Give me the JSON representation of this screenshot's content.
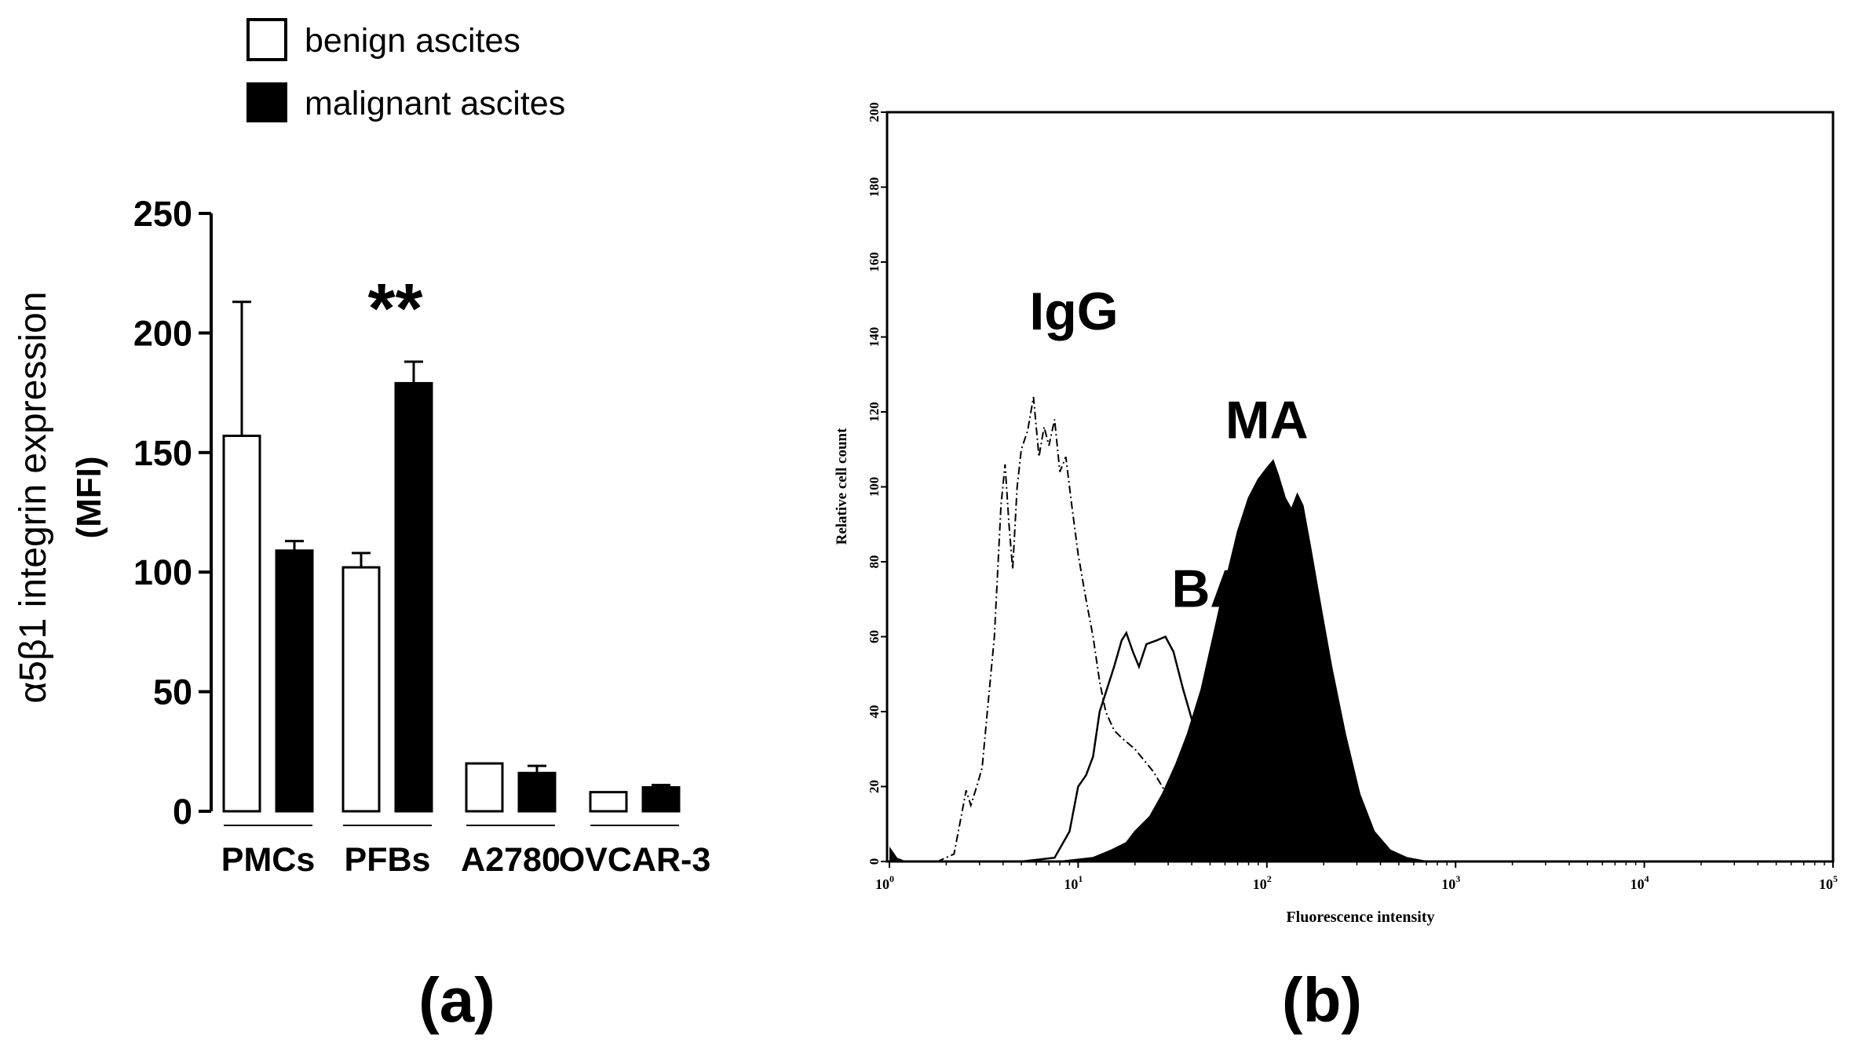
{
  "chart_data": [
    {
      "type": "bar",
      "panel_label": "(a)",
      "ylabel": "α5β1 integrin expression",
      "ylabel_unit": "(MFI)",
      "ylim": [
        0,
        250
      ],
      "yticks": [
        0,
        50,
        100,
        150,
        200,
        250
      ],
      "categories": [
        "PMCs",
        "PFBs",
        "A2780",
        "OVCAR-3"
      ],
      "series": [
        {
          "name": "benign ascites",
          "fill": "#ffffff",
          "values": [
            157,
            102,
            20,
            8
          ],
          "errors": [
            56,
            6,
            0,
            0
          ]
        },
        {
          "name": "malignant ascites",
          "fill": "#000000",
          "values": [
            109,
            179,
            16,
            10
          ],
          "errors": [
            4,
            9,
            3,
            1
          ]
        }
      ],
      "annotations": [
        {
          "text": "**",
          "category": "PFBs"
        }
      ],
      "legend_position": "top"
    },
    {
      "type": "area",
      "subtype": "flow cytometry histogram",
      "panel_label": "(b)",
      "xlabel": "Fluorescence intensity",
      "ylabel": "Relative cell count",
      "x_scale": "log",
      "xlim": [
        1,
        100000
      ],
      "ylim": [
        0,
        200
      ],
      "yticks": [
        0,
        20,
        40,
        60,
        80,
        100,
        120,
        140,
        160,
        180,
        200
      ],
      "xticks": [
        {
          "value": 1,
          "base": "10",
          "exp": "0"
        },
        {
          "value": 10,
          "base": "10",
          "exp": "1"
        },
        {
          "value": 100,
          "base": "10",
          "exp": "2"
        },
        {
          "value": 1000,
          "base": "10",
          "exp": "3"
        },
        {
          "value": 10000,
          "base": "10",
          "exp": "4"
        },
        {
          "value": 100000,
          "base": "10",
          "exp": "5"
        }
      ],
      "series": [
        {
          "name": "IgG",
          "style": "dash-dot",
          "label_at": [
            9.5,
            142
          ],
          "points": [
            [
              1,
              0
            ],
            [
              1.3,
              0
            ],
            [
              1.8,
              0
            ],
            [
              2.2,
              2
            ],
            [
              2.4,
              12
            ],
            [
              2.55,
              19
            ],
            [
              2.7,
              15
            ],
            [
              2.9,
              20
            ],
            [
              3.1,
              25
            ],
            [
              3.3,
              40
            ],
            [
              3.6,
              60
            ],
            [
              3.9,
              95
            ],
            [
              4.1,
              106
            ],
            [
              4.3,
              90
            ],
            [
              4.5,
              78
            ],
            [
              4.75,
              100
            ],
            [
              5.0,
              110
            ],
            [
              5.4,
              115
            ],
            [
              5.8,
              124
            ],
            [
              6.2,
              108
            ],
            [
              6.6,
              116
            ],
            [
              7.0,
              111
            ],
            [
              7.5,
              118
            ],
            [
              8.0,
              104
            ],
            [
              8.6,
              108
            ],
            [
              9.2,
              96
            ],
            [
              10,
              82
            ],
            [
              11,
              70
            ],
            [
              12,
              60
            ],
            [
              13,
              48
            ],
            [
              14,
              40
            ],
            [
              15.5,
              35
            ],
            [
              17,
              33
            ],
            [
              20,
              30
            ],
            [
              25,
              24
            ],
            [
              32,
              15
            ],
            [
              42,
              10
            ],
            [
              55,
              5
            ],
            [
              75,
              2
            ],
            [
              100,
              1
            ],
            [
              140,
              0
            ],
            [
              200,
              0
            ]
          ]
        },
        {
          "name": "BA",
          "style": "solid",
          "label_at": [
            50,
            68
          ],
          "points": [
            [
              1,
              0
            ],
            [
              5,
              0
            ],
            [
              7.5,
              1
            ],
            [
              9,
              8
            ],
            [
              10,
              20
            ],
            [
              11,
              23
            ],
            [
              12,
              28
            ],
            [
              13,
              40
            ],
            [
              14,
              45
            ],
            [
              15.5,
              52
            ],
            [
              17,
              59
            ],
            [
              18,
              61
            ],
            [
              19.5,
              56
            ],
            [
              21,
              52
            ],
            [
              23,
              58
            ],
            [
              26,
              59
            ],
            [
              29,
              60
            ],
            [
              32,
              56
            ],
            [
              36,
              46
            ],
            [
              40,
              38
            ],
            [
              48,
              30
            ],
            [
              60,
              20
            ],
            [
              80,
              10
            ],
            [
              110,
              4
            ],
            [
              160,
              1
            ],
            [
              250,
              0
            ],
            [
              400,
              0
            ]
          ]
        },
        {
          "name": "MA",
          "style": "filled",
          "label_at": [
            100,
            113
          ],
          "points": [
            [
              1,
              0
            ],
            [
              8,
              0
            ],
            [
              12,
              1
            ],
            [
              15,
              3
            ],
            [
              18,
              5
            ],
            [
              20,
              8
            ],
            [
              24,
              12
            ],
            [
              28,
              18
            ],
            [
              33,
              26
            ],
            [
              38,
              34
            ],
            [
              45,
              46
            ],
            [
              52,
              60
            ],
            [
              60,
              74
            ],
            [
              70,
              88
            ],
            [
              80,
              97
            ],
            [
              90,
              102
            ],
            [
              100,
              105
            ],
            [
              108,
              107
            ],
            [
              115,
              103
            ],
            [
              125,
              97
            ],
            [
              135,
              94
            ],
            [
              145,
              98
            ],
            [
              155,
              95
            ],
            [
              170,
              84
            ],
            [
              190,
              70
            ],
            [
              220,
              52
            ],
            [
              260,
              34
            ],
            [
              310,
              18
            ],
            [
              370,
              8
            ],
            [
              450,
              3
            ],
            [
              550,
              1
            ],
            [
              700,
              0
            ],
            [
              2000,
              0
            ]
          ]
        }
      ]
    }
  ]
}
